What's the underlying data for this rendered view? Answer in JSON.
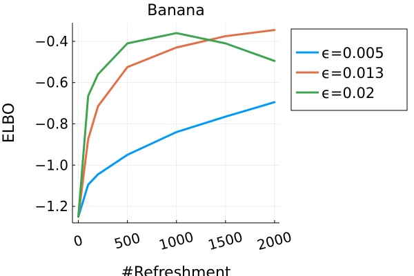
{
  "chart_data": {
    "type": "line",
    "title": "Banana",
    "xlabel": "#Refreshment",
    "ylabel": "ELBO",
    "x": [
      0,
      100,
      200,
      500,
      1000,
      1500,
      2000
    ],
    "xlim": [
      -60,
      2050
    ],
    "ylim": [
      -1.28,
      -0.31
    ],
    "xticks": [
      0,
      500,
      1000,
      1500,
      2000
    ],
    "xtick_labels": [
      "0",
      "500",
      "1000",
      "1500",
      "2000"
    ],
    "yticks": [
      -1.2,
      -1.0,
      -0.8,
      -0.6,
      -0.4
    ],
    "ytick_labels": [
      "−1.2",
      "−1.0",
      "−0.8",
      "−0.6",
      "−0.4"
    ],
    "grid": true,
    "legend_position": "outside-top-right",
    "series": [
      {
        "name": "ϵ=0.005",
        "color": "#009AFA",
        "values": [
          -1.25,
          -1.095,
          -1.045,
          -0.95,
          -0.84,
          -0.765,
          -0.695
        ]
      },
      {
        "name": "ϵ=0.013",
        "color": "#E26F46",
        "values": [
          -1.25,
          -0.875,
          -0.715,
          -0.525,
          -0.43,
          -0.375,
          -0.345
        ]
      },
      {
        "name": "ϵ=0.02",
        "color": "#3EA44E",
        "values": [
          -1.25,
          -0.665,
          -0.56,
          -0.41,
          -0.36,
          -0.41,
          -0.495
        ]
      }
    ]
  }
}
